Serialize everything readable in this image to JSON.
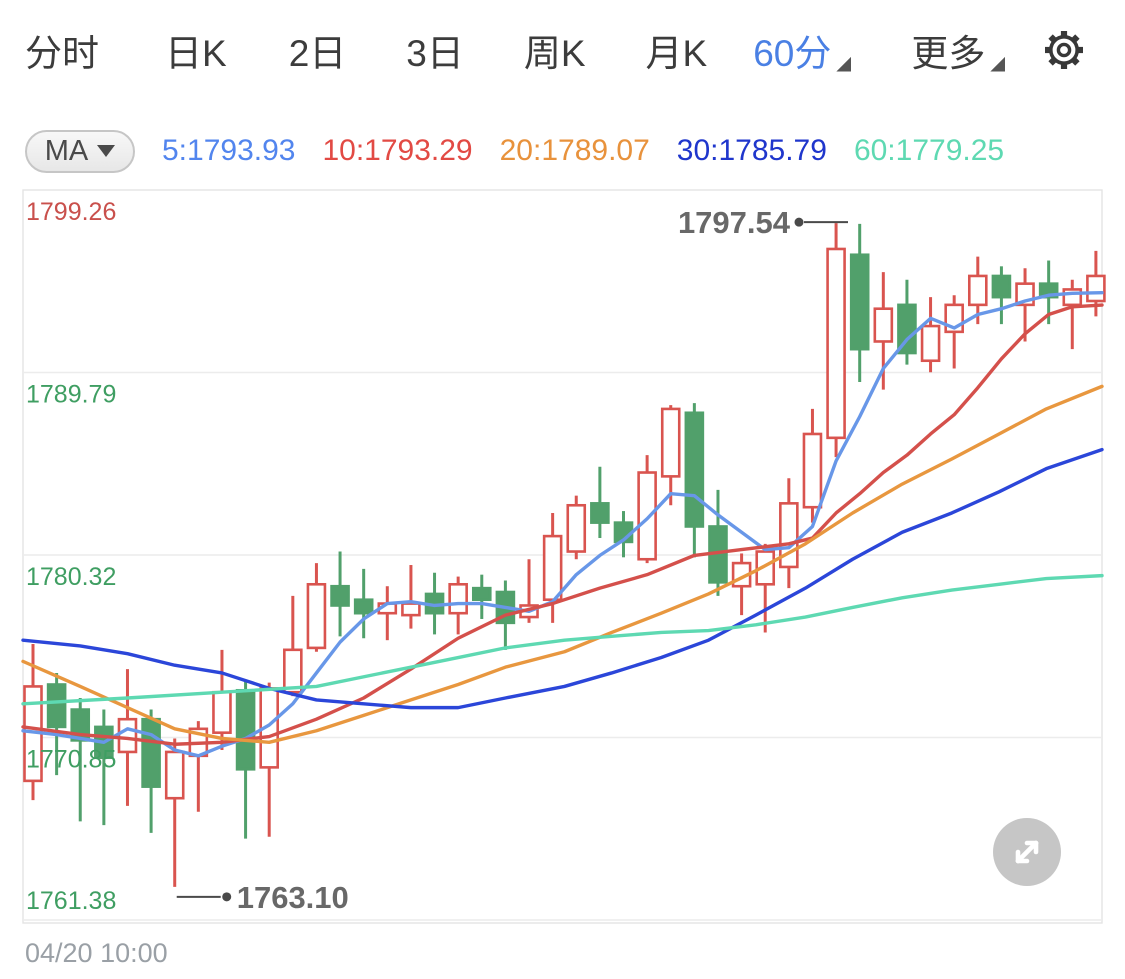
{
  "toolbar": {
    "active_color": "#4a80e4",
    "tabs": [
      {
        "label": "分时",
        "active": false,
        "has_dropdown": false
      },
      {
        "label": "日K",
        "active": false,
        "has_dropdown": false
      },
      {
        "label": "2日",
        "active": false,
        "has_dropdown": false
      },
      {
        "label": "3日",
        "active": false,
        "has_dropdown": false
      },
      {
        "label": "周K",
        "active": false,
        "has_dropdown": false
      },
      {
        "label": "月K",
        "active": false,
        "has_dropdown": false
      },
      {
        "label": "60分",
        "active": true,
        "has_dropdown": true
      },
      {
        "label": "更多",
        "active": false,
        "has_dropdown": true
      }
    ],
    "gear_icon": "settings-gear"
  },
  "ma_legend": {
    "button_label": "MA",
    "items": [
      {
        "label": "5:1793.93",
        "color": "#5285ee"
      },
      {
        "label": "10:1793.29",
        "color": "#e24a44"
      },
      {
        "label": "20:1789.07",
        "color": "#e8923c"
      },
      {
        "label": "30:1785.79",
        "color": "#1f36cc"
      },
      {
        "label": "60:1779.25",
        "color": "#5ed9b2"
      }
    ]
  },
  "chart_data": {
    "type": "candlestick",
    "up_color": "#d9544f",
    "down_color": "#51a06b",
    "grid": "horizontal",
    "price_axis": {
      "max": 1799.26,
      "min": 1761.38,
      "labels": [
        "1799.26",
        "1789.79",
        "1780.32",
        "1770.85",
        "1761.38"
      ],
      "label_colors": [
        "#c9504c",
        "#3f9e62",
        "#3f9e62",
        "#3f9e62",
        "#3f9e62"
      ]
    },
    "x_axis": {
      "labels": [
        "04/20 10:00"
      ]
    },
    "annotations": {
      "high": {
        "text": "1797.54",
        "price": 1797.54,
        "candle_index": 34
      },
      "low": {
        "text": "1763.10",
        "price": 1763.1,
        "candle_index": 6
      }
    },
    "candles": [
      [
        1768.6,
        1775.7,
        1767.6,
        1773.5
      ],
      [
        1773.6,
        1774.2,
        1768.9,
        1771.4
      ],
      [
        1772.3,
        1772.9,
        1766.5,
        1770.7
      ],
      [
        1771.4,
        1772.3,
        1766.3,
        1769.8
      ],
      [
        1770.1,
        1774.4,
        1767.3,
        1771.8
      ],
      [
        1771.8,
        1772.3,
        1765.9,
        1768.3
      ],
      [
        1767.7,
        1770.8,
        1763.1,
        1770.1
      ],
      [
        1769.9,
        1771.7,
        1767.0,
        1771.3
      ],
      [
        1771.1,
        1775.4,
        1770.2,
        1773.2
      ],
      [
        1773.3,
        1773.8,
        1765.6,
        1769.2
      ],
      [
        1769.3,
        1773.7,
        1765.7,
        1773.4
      ],
      [
        1773.2,
        1778.2,
        1773.0,
        1775.4
      ],
      [
        1775.5,
        1779.9,
        1775.3,
        1778.8
      ],
      [
        1778.7,
        1780.5,
        1776.1,
        1777.7
      ],
      [
        1778.0,
        1779.6,
        1776.0,
        1777.3
      ],
      [
        1777.3,
        1778.7,
        1775.9,
        1777.8
      ],
      [
        1777.2,
        1779.8,
        1776.5,
        1777.8
      ],
      [
        1778.3,
        1779.4,
        1776.2,
        1777.3
      ],
      [
        1777.3,
        1779.2,
        1776.2,
        1778.8
      ],
      [
        1778.6,
        1779.3,
        1777.0,
        1778.0
      ],
      [
        1778.4,
        1779.0,
        1775.4,
        1776.8
      ],
      [
        1777.1,
        1780.1,
        1776.8,
        1777.7
      ],
      [
        1778.0,
        1782.5,
        1776.8,
        1781.3
      ],
      [
        1780.5,
        1783.4,
        1780.1,
        1782.9
      ],
      [
        1783.0,
        1784.9,
        1781.2,
        1782.0
      ],
      [
        1782.0,
        1782.6,
        1780.2,
        1781.0
      ],
      [
        1780.1,
        1785.5,
        1779.9,
        1784.6
      ],
      [
        1784.4,
        1788.1,
        1782.9,
        1787.9
      ],
      [
        1787.7,
        1788.2,
        1780.2,
        1781.8
      ],
      [
        1781.8,
        1783.7,
        1778.2,
        1778.9
      ],
      [
        1778.7,
        1780.4,
        1777.2,
        1779.9
      ],
      [
        1778.8,
        1780.9,
        1776.3,
        1780.5
      ],
      [
        1779.7,
        1784.3,
        1778.6,
        1783.0
      ],
      [
        1782.8,
        1787.9,
        1782.0,
        1786.6
      ],
      [
        1786.4,
        1797.54,
        1785.4,
        1796.2
      ],
      [
        1795.9,
        1797.5,
        1789.3,
        1791.0
      ],
      [
        1791.4,
        1795.0,
        1788.9,
        1793.1
      ],
      [
        1793.3,
        1794.6,
        1790.2,
        1790.8
      ],
      [
        1790.4,
        1793.7,
        1789.8,
        1792.2
      ],
      [
        1791.9,
        1793.8,
        1790.0,
        1793.3
      ],
      [
        1793.3,
        1795.8,
        1792.3,
        1794.8
      ],
      [
        1794.8,
        1795.3,
        1792.3,
        1793.7
      ],
      [
        1793.3,
        1795.2,
        1791.4,
        1794.4
      ],
      [
        1794.4,
        1795.6,
        1792.3,
        1793.7
      ],
      [
        1793.3,
        1794.6,
        1791.0,
        1794.1
      ],
      [
        1793.5,
        1796.1,
        1792.7,
        1794.8
      ]
    ],
    "ma_lines": [
      {
        "name": "MA5",
        "color": "#6897e8",
        "points": [
          [
            0,
            1771.2
          ],
          [
            1,
            1771.0
          ],
          [
            2,
            1770.8
          ],
          [
            3,
            1770.6
          ],
          [
            4,
            1771.3
          ],
          [
            5,
            1771.0
          ],
          [
            6,
            1770.2
          ],
          [
            7,
            1769.9
          ],
          [
            8,
            1770.4
          ],
          [
            9,
            1770.8
          ],
          [
            10,
            1771.5
          ],
          [
            11,
            1772.6
          ],
          [
            12,
            1774.2
          ],
          [
            13,
            1775.8
          ],
          [
            14,
            1777.0
          ],
          [
            15,
            1777.8
          ],
          [
            16,
            1777.9
          ],
          [
            17,
            1777.7
          ],
          [
            18,
            1777.8
          ],
          [
            19,
            1777.8
          ],
          [
            20,
            1777.6
          ],
          [
            21,
            1777.4
          ],
          [
            22,
            1777.9
          ],
          [
            23,
            1779.3
          ],
          [
            24,
            1780.3
          ],
          [
            25,
            1781.1
          ],
          [
            26,
            1782.2
          ],
          [
            27,
            1783.5
          ],
          [
            28,
            1783.4
          ],
          [
            29,
            1782.4
          ],
          [
            30,
            1781.5
          ],
          [
            31,
            1780.6
          ],
          [
            32,
            1780.7
          ],
          [
            33,
            1781.8
          ],
          [
            34,
            1785.2
          ],
          [
            35,
            1787.5
          ],
          [
            36,
            1790.0
          ],
          [
            37,
            1791.5
          ],
          [
            38,
            1792.6
          ],
          [
            39,
            1792.1
          ],
          [
            40,
            1792.8
          ],
          [
            41,
            1793.1
          ],
          [
            42,
            1793.5
          ],
          [
            43,
            1793.8
          ],
          [
            44,
            1793.9
          ],
          [
            45,
            1793.93
          ]
        ]
      },
      {
        "name": "MA10",
        "color": "#d4504b",
        "points": [
          [
            0,
            1771.4
          ],
          [
            2,
            1771.0
          ],
          [
            4,
            1770.8
          ],
          [
            6,
            1770.5
          ],
          [
            8,
            1770.6
          ],
          [
            10,
            1770.9
          ],
          [
            12,
            1771.8
          ],
          [
            14,
            1772.9
          ],
          [
            16,
            1774.4
          ],
          [
            18,
            1776.0
          ],
          [
            20,
            1777.2
          ],
          [
            22,
            1777.8
          ],
          [
            24,
            1778.6
          ],
          [
            26,
            1779.3
          ],
          [
            28,
            1780.3
          ],
          [
            30,
            1780.6
          ],
          [
            32,
            1780.9
          ],
          [
            33,
            1781.2
          ],
          [
            34,
            1782.5
          ],
          [
            35,
            1783.5
          ],
          [
            36,
            1784.6
          ],
          [
            37,
            1785.5
          ],
          [
            38,
            1786.6
          ],
          [
            39,
            1787.6
          ],
          [
            40,
            1789.0
          ],
          [
            41,
            1790.5
          ],
          [
            42,
            1791.8
          ],
          [
            43,
            1792.8
          ],
          [
            44,
            1793.2
          ],
          [
            45,
            1793.29
          ]
        ]
      },
      {
        "name": "MA20",
        "color": "#e8973f",
        "points": [
          [
            0,
            1774.8
          ],
          [
            2,
            1773.5
          ],
          [
            4,
            1772.4
          ],
          [
            6,
            1771.3
          ],
          [
            8,
            1770.8
          ],
          [
            10,
            1770.6
          ],
          [
            12,
            1771.2
          ],
          [
            14,
            1772.0
          ],
          [
            16,
            1772.8
          ],
          [
            18,
            1773.6
          ],
          [
            20,
            1774.5
          ],
          [
            22.5,
            1775.3
          ],
          [
            24.5,
            1776.3
          ],
          [
            26.6,
            1777.3
          ],
          [
            28.6,
            1778.3
          ],
          [
            30.6,
            1779.5
          ],
          [
            32.7,
            1780.9
          ],
          [
            34.7,
            1782.5
          ],
          [
            36.8,
            1784.0
          ],
          [
            38.9,
            1785.3
          ],
          [
            40.9,
            1786.6
          ],
          [
            42.9,
            1787.9
          ],
          [
            45,
            1789.07
          ]
        ]
      },
      {
        "name": "MA30",
        "color": "#2b46d9",
        "points": [
          [
            0,
            1775.9
          ],
          [
            2,
            1775.6
          ],
          [
            4,
            1775.2
          ],
          [
            6,
            1774.6
          ],
          [
            8,
            1774.2
          ],
          [
            10,
            1773.4
          ],
          [
            12,
            1772.8
          ],
          [
            14,
            1772.6
          ],
          [
            16,
            1772.4
          ],
          [
            18,
            1772.4
          ],
          [
            20,
            1772.9
          ],
          [
            22.5,
            1773.5
          ],
          [
            24.5,
            1774.2
          ],
          [
            26.6,
            1775.0
          ],
          [
            28.6,
            1775.9
          ],
          [
            30.6,
            1777.2
          ],
          [
            32.7,
            1778.6
          ],
          [
            34.7,
            1780.1
          ],
          [
            36.8,
            1781.5
          ],
          [
            38.9,
            1782.5
          ],
          [
            40.9,
            1783.6
          ],
          [
            42.9,
            1784.8
          ],
          [
            45,
            1785.79
          ]
        ]
      },
      {
        "name": "MA60",
        "color": "#5ed9b2",
        "points": [
          [
            0,
            1772.6
          ],
          [
            4,
            1772.9
          ],
          [
            8,
            1773.2
          ],
          [
            12,
            1773.5
          ],
          [
            16,
            1774.5
          ],
          [
            18,
            1775.0
          ],
          [
            20,
            1775.5
          ],
          [
            22.5,
            1775.9
          ],
          [
            24.5,
            1776.1
          ],
          [
            26.6,
            1776.3
          ],
          [
            28.6,
            1776.4
          ],
          [
            30.6,
            1776.7
          ],
          [
            32.7,
            1777.1
          ],
          [
            34.7,
            1777.6
          ],
          [
            36.8,
            1778.1
          ],
          [
            38.9,
            1778.5
          ],
          [
            40.9,
            1778.8
          ],
          [
            42.9,
            1779.1
          ],
          [
            45,
            1779.25
          ]
        ]
      }
    ]
  },
  "chart_controls": {
    "expand_icon": "expand-diagonal-arrows"
  },
  "footer": {
    "timestamp": "04/20 10:00"
  }
}
